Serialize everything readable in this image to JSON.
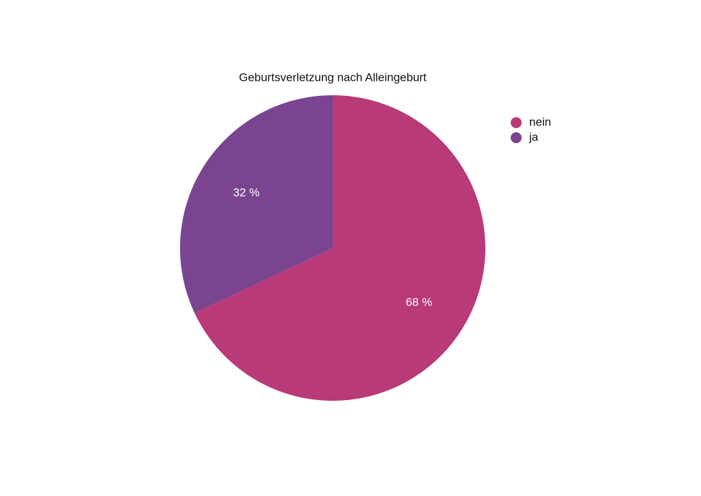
{
  "chart_data": {
    "type": "pie",
    "title": "Geburtsverletzung nach Alleingeburt",
    "categories": [
      "nein",
      "ja"
    ],
    "values": [
      68,
      32
    ],
    "value_labels": [
      "68 %",
      "32 %"
    ],
    "colors": [
      "#b93a78",
      "#7b4490"
    ],
    "legend": "top-right"
  }
}
